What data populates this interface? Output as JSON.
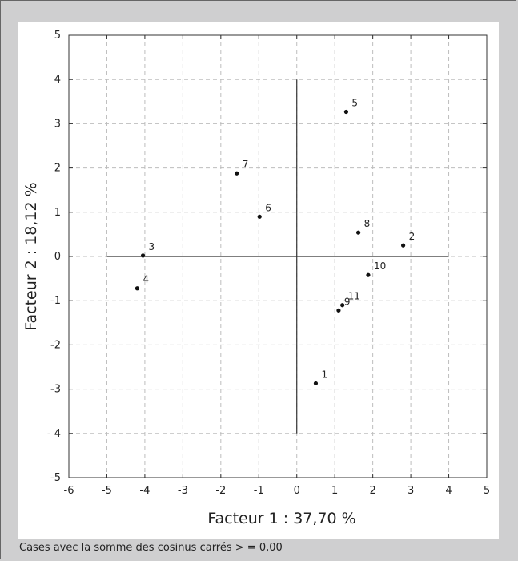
{
  "footer_note": "Cases avec la somme des cosinus carrés > = 0,00",
  "chart_data": {
    "type": "scatter",
    "xlabel": "Facteur 1 : 37,70 %",
    "ylabel": "Facteur 2 : 18,12 %",
    "xlim": [
      -6,
      5
    ],
    "ylim": [
      -5,
      5
    ],
    "x_ticks": [
      -6,
      -5,
      -4,
      -3,
      -2,
      -1,
      0,
      1,
      2,
      3,
      4,
      5
    ],
    "x_tick_labels": [
      "-6",
      "-5",
      "-4",
      "-3",
      "-2",
      "-1",
      "0",
      "1",
      "2",
      "3",
      "4",
      "5"
    ],
    "y_ticks": [
      5,
      4,
      3,
      2,
      1,
      0,
      -1,
      -2,
      -3,
      -4,
      -5
    ],
    "y_tick_labels": [
      "5",
      "4",
      "3",
      "2",
      "1",
      "0",
      "-1",
      "-2",
      "-3",
      "- 4",
      "-5"
    ],
    "grid": true,
    "grid_style": "dashed",
    "reference_lines": {
      "x_extent": [
        -5,
        4
      ],
      "y_extent": [
        -4,
        4
      ]
    },
    "points": [
      {
        "label": "1",
        "x": 0.5,
        "y": -2.87
      },
      {
        "label": "2",
        "x": 2.8,
        "y": 0.25
      },
      {
        "label": "3",
        "x": -4.05,
        "y": 0.02
      },
      {
        "label": "4",
        "x": -4.2,
        "y": -0.72
      },
      {
        "label": "5",
        "x": 1.3,
        "y": 3.27
      },
      {
        "label": "6",
        "x": -0.98,
        "y": 0.9
      },
      {
        "label": "7",
        "x": -1.58,
        "y": 1.88
      },
      {
        "label": "8",
        "x": 1.62,
        "y": 0.54
      },
      {
        "label": "9",
        "x": 1.1,
        "y": -1.22
      },
      {
        "label": "10",
        "x": 1.88,
        "y": -0.42
      },
      {
        "label": "11",
        "x": 1.2,
        "y": -1.1
      }
    ]
  }
}
